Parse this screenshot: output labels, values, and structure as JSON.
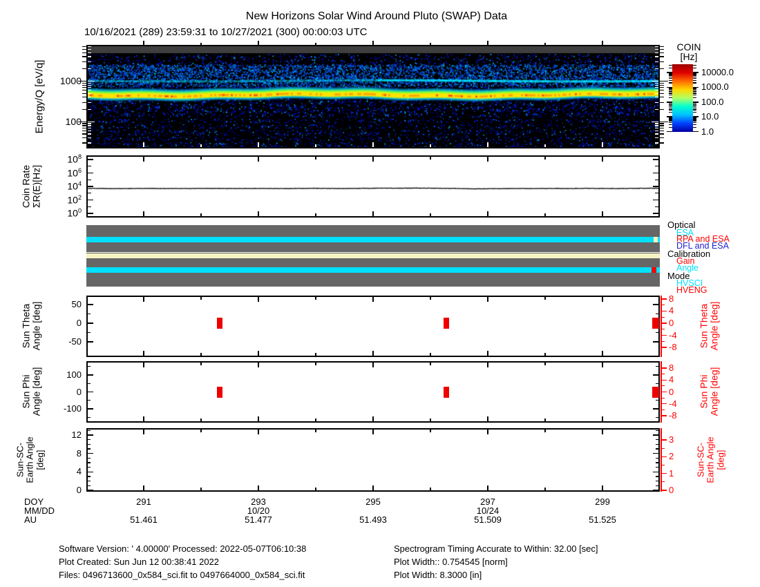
{
  "title": "New Horizons Solar Wind Around Pluto (SWAP) Data",
  "subtitle": "10/16/2021 (289) 23:59:31 to 10/27/2021 (300) 00:00:03 UTC",
  "colors": {
    "accent_red": "#ff0000",
    "cyan": "#00e0ff",
    "cream": "#f6f3c2",
    "status_gray": "#666666",
    "legend_blue": "#2222cc",
    "spectrogram_topband_gray": "#3f3f3f"
  },
  "chart_data": [
    {
      "id": "spectrogram",
      "type": "heatmap",
      "ylabel": "Energy/Q [eV/q]",
      "y_scale": "log",
      "y_range_ev": [
        22,
        7800
      ],
      "yticks": [
        1000,
        100
      ],
      "x_range_doy": [
        290,
        300
      ],
      "colorbar": {
        "title": "COIN",
        "units": "[Hz]",
        "ticks": [
          "10000.0",
          "1000.0",
          "100.0",
          "10.0",
          "1.0"
        ],
        "gradient": [
          "#9b0000",
          "#e00000",
          "#ff6a00",
          "#ffd700",
          "#b0ff66",
          "#00ffd0",
          "#00bfff",
          "#0040ff",
          "#0000a0"
        ]
      },
      "features": {
        "top_gray_band": {
          "color": "#3f3f3f"
        },
        "alpha_band": {
          "energy_ev": 1050,
          "color": "#00e0ff",
          "note": "brighter in right half"
        },
        "proton_band": {
          "energy_ev_range": [
            450,
            750
          ],
          "colors": [
            "#00dcff",
            "#7dff3c",
            "#ffe400",
            "#ff9000",
            "#ff2d00"
          ]
        },
        "noise": {
          "colors_sparse": [
            "#0000bb",
            "#0033ee",
            "#0077ff",
            "#00ccff"
          ],
          "colors_dense": [
            "#0040dd",
            "#0077ff",
            "#00aaff",
            "#00e0ff"
          ]
        }
      }
    },
    {
      "id": "coin_rate",
      "type": "line",
      "ylabel_line1": "Coin Rate",
      "ylabel_line2": "ΣR(E)[Hz]",
      "ytick_exponents": [
        8,
        6,
        4,
        2,
        0
      ],
      "ytick_minor_exponents": [
        7,
        5,
        3,
        1
      ],
      "x_range_doy": [
        290,
        300
      ],
      "log10_rate": [
        3.72,
        3.7,
        3.68,
        3.7,
        3.71,
        3.7,
        3.69,
        3.7,
        3.72,
        3.71,
        3.7,
        3.7,
        3.71,
        3.7,
        3.69,
        3.71,
        3.72,
        3.71,
        3.7,
        3.72,
        3.74,
        3.75,
        3.73,
        3.76,
        3.74,
        3.72,
        3.7,
        3.64,
        3.66,
        3.68,
        3.7,
        3.69,
        3.7,
        3.71,
        3.7,
        3.72,
        3.7,
        3.69,
        3.71,
        3.74,
        3.73
      ]
    },
    {
      "id": "status",
      "type": "status-bars",
      "legend_groups": [
        {
          "label": "Optical",
          "color": "#000000",
          "items": [
            {
              "label": "ESA",
              "color": "#00e0ff"
            },
            {
              "label": "RPA and ESA",
              "color": "#ff0000"
            },
            {
              "label": "DFL and ESA",
              "color": "#2222cc"
            }
          ]
        },
        {
          "label": "Calibration",
          "color": "#000000",
          "items": [
            {
              "label": "Gain",
              "color": "#ff0000"
            },
            {
              "label": "Angle",
              "color": "#00e0ff"
            }
          ]
        },
        {
          "label": "Mode",
          "color": "#000000",
          "items": [
            {
              "label": "HVSCI",
              "color": "#00e0ff"
            },
            {
              "label": "HVENG",
              "color": "#ff0000"
            }
          ]
        }
      ],
      "stripes": [
        {
          "lane": 0,
          "group": "Optical",
          "color": "#00e0ff",
          "start_doy": 290,
          "end_doy": 300,
          "segments": [
            {
              "color": "#f6f3c2",
              "start_doy": 299.89,
              "end_doy": 299.96
            }
          ]
        },
        {
          "lane": 1,
          "group": "Calibration",
          "color": "#f6f3c2",
          "start_doy": 290,
          "end_doy": 300,
          "segments": []
        },
        {
          "lane": 2,
          "group": "Mode",
          "color": "#00e0ff",
          "start_doy": 290,
          "end_doy": 300,
          "segments": [
            {
              "color": "#ff0000",
              "start_doy": 299.86,
              "end_doy": 299.94
            }
          ]
        }
      ]
    },
    {
      "id": "sun_theta",
      "type": "scatter",
      "ylabel_line1": "Sun Theta",
      "ylabel_line2": "Angle [deg]",
      "right_label_line1": "Sun Theta",
      "right_label_line2": "Angle [deg]",
      "yticks": [
        50,
        0,
        -50
      ],
      "ytick_minor": [
        25,
        -25
      ],
      "right_yticks": [
        8,
        4,
        0,
        -4,
        -8
      ],
      "right_ytick_minor": [
        6,
        2,
        -2,
        -6
      ],
      "marker": "red-bar",
      "points": [
        {
          "doy": 292.33,
          "deg": 0
        },
        {
          "doy": 296.28,
          "deg": 0
        },
        {
          "doy": 299.93,
          "deg": 0
        }
      ]
    },
    {
      "id": "sun_phi",
      "type": "scatter",
      "ylabel_line1": "Sun Phi",
      "ylabel_line2": "Angle [deg]",
      "right_label_line1": "Sun Phi",
      "right_label_line2": "Angle [deg]",
      "yticks": [
        100,
        0,
        -100
      ],
      "ytick_minor": [
        150,
        50,
        -50,
        -150
      ],
      "right_yticks": [
        8,
        4,
        0,
        -4,
        -8
      ],
      "right_ytick_minor": [
        6,
        2,
        -2,
        -6
      ],
      "marker": "red-bar",
      "points": [
        {
          "doy": 292.33,
          "deg": 0
        },
        {
          "doy": 296.28,
          "deg": 0
        },
        {
          "doy": 299.93,
          "deg": 0
        }
      ]
    },
    {
      "id": "sun_sc_earth",
      "type": "scatter",
      "ylabel_line1": "Sun-SC-",
      "ylabel_line2": "Earth Angle",
      "ylabel_line3": "[deg]",
      "right_label_line1": "Sun-SC-",
      "right_label_line2": "Earth Angle",
      "right_label_line3": "[deg]",
      "yticks": [
        12,
        8,
        4,
        0
      ],
      "ytick_minor": [
        13,
        11,
        10,
        9,
        7,
        6,
        5,
        3,
        2,
        1
      ],
      "right_yticks": [
        3,
        2,
        1,
        0
      ],
      "right_ytick_minor": [
        2.5,
        1.5,
        0.5
      ],
      "points": []
    },
    {
      "id": "xaxis",
      "type": "table",
      "row_labels": [
        "DOY",
        "MM/DD",
        "AU"
      ],
      "x_tick_doys_major": [
        291,
        293,
        295,
        297,
        299
      ],
      "x_tick_doys_minor": [
        292,
        294,
        296,
        298
      ],
      "doy_ticks": [
        "291",
        "293",
        "295",
        "297",
        "299"
      ],
      "mmdd_ticks": [
        {
          "doy": 293,
          "label": "10/20"
        },
        {
          "doy": 297,
          "label": "10/24"
        }
      ],
      "au_ticks": [
        {
          "doy": 291,
          "label": "51.461"
        },
        {
          "doy": 293,
          "label": "51.477"
        },
        {
          "doy": 295,
          "label": "51.493"
        },
        {
          "doy": 297,
          "label": "51.509"
        },
        {
          "doy": 299,
          "label": "51.525"
        }
      ]
    }
  ],
  "footer": {
    "left_lines": [
      "Software Version:  ' 4.00000'  Processed: 2022-05-07T06:10:38",
      "Plot Created: Sun Jun 12 00:38:41 2022",
      "Files: 0496713600_0x584_sci.fit to 0497664000_0x584_sci.fit"
    ],
    "right_lines": [
      "Spectrogram Timing Accurate to Within: 32.00 [sec]",
      "Plot Width:: 0.754545 [norm]",
      "Plot Width: 8.3000 [in]"
    ]
  }
}
